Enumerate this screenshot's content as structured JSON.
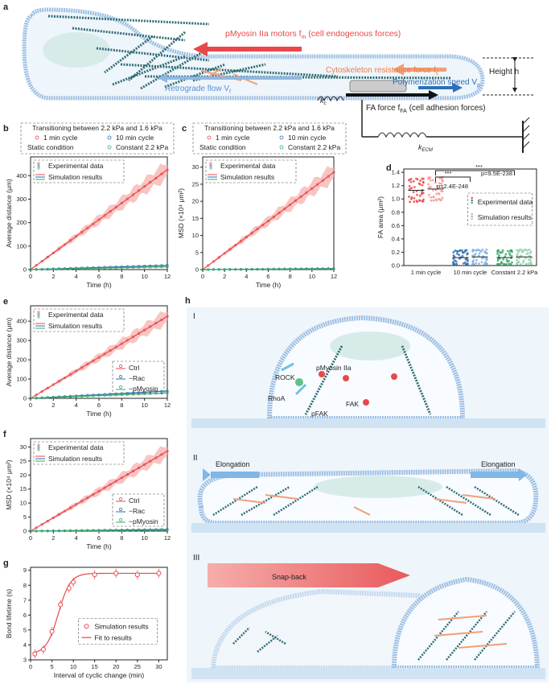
{
  "panel_letters": [
    "a",
    "b",
    "c",
    "d",
    "e",
    "f",
    "g",
    "h"
  ],
  "schematic_a": {
    "motor_label": "pMyosin IIa motors f",
    "motor_sub": "m",
    "motor_suffix": " (cell endogenous forces)",
    "resistance_label": "Cytoskeleton resistance force f",
    "resistance_sub": "c",
    "retro_label": "Retrograde flow V",
    "retro_sub": "f",
    "poly_label": "Polymerization speed V",
    "poly_sub": "p",
    "height_label": "Height h",
    "kc_label": "k",
    "kc_sub": "c",
    "fa_label": "FA force f",
    "fa_sub": "FA",
    "fa_suffix": " (cell adhesion forces)",
    "kecm_label": "k",
    "kecm_sub": "ECM"
  },
  "legend_bc": {
    "header": "Transitioning between 2.2 kPa and 1.6 kPa",
    "s1": "1 min cycle",
    "s2": "10 min cycle",
    "static_label": "Static condition",
    "s3": "Constant 2.2 kPa",
    "exp": "Experimental data",
    "sim": "Simulation results"
  },
  "legend_ef": {
    "exp": "Experimental data",
    "sim": "Simulation results",
    "c1": "Ctrl",
    "c2": "−Rac",
    "c3": "−pMyosin"
  },
  "legend_g": {
    "sim": "Simulation results",
    "fit": "Fit to results"
  },
  "legend_d": {
    "exp": "Experimental data",
    "sim": "Simulation results",
    "p1": "p=2.4E-248",
    "p2": "p=9.5E-238",
    "stars1": "***",
    "stars2": "***"
  },
  "colors": {
    "red": "#e8484a",
    "blue": "#2f6fb6",
    "green": "#3aa86a",
    "pink": "#f6b7b4",
    "cell": "#9dbfe3",
    "orange": "#f29f77"
  },
  "chart_data": [
    {
      "panel": "b",
      "type": "line",
      "xlabel": "Time (h)",
      "ylabel": "Average distance (μm)",
      "xlim": [
        0,
        12
      ],
      "ylim": [
        0,
        480
      ],
      "xticks": [
        0,
        2,
        4,
        6,
        8,
        10,
        12
      ],
      "yticks": [
        0,
        100,
        200,
        300,
        400
      ],
      "series": [
        {
          "name": "1 min cycle",
          "x": [
            0,
            12
          ],
          "y": [
            0,
            425
          ]
        },
        {
          "name": "10 min cycle",
          "x": [
            0,
            12
          ],
          "y": [
            0,
            18
          ]
        },
        {
          "name": "Constant 2.2 kPa",
          "x": [
            0,
            12
          ],
          "y": [
            0,
            12
          ]
        }
      ]
    },
    {
      "panel": "c",
      "type": "line",
      "xlabel": "Time (h)",
      "ylabel": "MSD (×10⁴ μm²)",
      "xlim": [
        0,
        12
      ],
      "ylim": [
        0,
        33
      ],
      "xticks": [
        0,
        2,
        4,
        6,
        8,
        10,
        12
      ],
      "yticks": [
        0,
        5,
        10,
        15,
        20,
        25,
        30
      ],
      "series": [
        {
          "name": "1 min cycle",
          "x": [
            0,
            12
          ],
          "y": [
            0,
            28.5
          ]
        },
        {
          "name": "10 min cycle",
          "x": [
            0,
            12
          ],
          "y": [
            0,
            0.3
          ]
        },
        {
          "name": "Constant 2.2 kPa",
          "x": [
            0,
            12
          ],
          "y": [
            0,
            0.2
          ]
        }
      ]
    },
    {
      "panel": "d",
      "type": "scatter",
      "ylabel": "FA area (μm²)",
      "ylim": [
        0,
        1.45
      ],
      "yticks": [
        0,
        0.2,
        0.4,
        0.6,
        0.8,
        1.0,
        1.2,
        1.4
      ],
      "categories": [
        "1 min cycle",
        "10 min cycle",
        "Constant 2.2 kPa"
      ],
      "groups": [
        {
          "category": "1 min cycle",
          "exp_mean": 1.13,
          "sim_mean": 1.15
        },
        {
          "category": "10 min cycle",
          "exp_mean": 0.12,
          "sim_mean": 0.13
        },
        {
          "category": "Constant 2.2 kPa",
          "exp_mean": 0.12,
          "sim_mean": 0.13
        }
      ]
    },
    {
      "panel": "e",
      "type": "line",
      "xlabel": "Time (h)",
      "ylabel": "Average distance (μm)",
      "xlim": [
        0,
        12
      ],
      "ylim": [
        0,
        480
      ],
      "xticks": [
        0,
        2,
        4,
        6,
        8,
        10,
        12
      ],
      "yticks": [
        0,
        100,
        200,
        300,
        400
      ],
      "series": [
        {
          "name": "Ctrl",
          "x": [
            0,
            12
          ],
          "y": [
            0,
            425
          ]
        },
        {
          "name": "−Rac",
          "x": [
            0,
            12
          ],
          "y": [
            0,
            38
          ]
        },
        {
          "name": "−pMyosin",
          "x": [
            0,
            12
          ],
          "y": [
            0,
            28
          ]
        }
      ]
    },
    {
      "panel": "f",
      "type": "line",
      "xlabel": "Time (h)",
      "ylabel": "MSD (×10⁴ μm²)",
      "xlim": [
        0,
        12
      ],
      "ylim": [
        0,
        33
      ],
      "xticks": [
        0,
        2,
        4,
        6,
        8,
        10,
        12
      ],
      "yticks": [
        0,
        5,
        10,
        15,
        20,
        25,
        30
      ],
      "series": [
        {
          "name": "Ctrl",
          "x": [
            0,
            12
          ],
          "y": [
            0,
            28.5
          ]
        },
        {
          "name": "−Rac",
          "x": [
            0,
            12
          ],
          "y": [
            0,
            0.6
          ]
        },
        {
          "name": "−pMyosin",
          "x": [
            0,
            12
          ],
          "y": [
            0,
            0.4
          ]
        }
      ]
    },
    {
      "panel": "g",
      "type": "scatter",
      "xlabel": "Interval of cyclic change (min)",
      "ylabel": "Bond lifetime (s)",
      "xlim": [
        0,
        32
      ],
      "ylim": [
        3,
        9.2
      ],
      "xticks": [
        0,
        5,
        10,
        15,
        20,
        25,
        30
      ],
      "yticks": [
        3,
        4,
        5,
        6,
        7,
        8,
        9
      ],
      "x": [
        1,
        3,
        5,
        7,
        9,
        10,
        15,
        20,
        25,
        30
      ],
      "y": [
        3.4,
        3.7,
        4.9,
        6.7,
        7.8,
        8.2,
        8.7,
        8.8,
        8.7,
        8.8
      ]
    }
  ],
  "schematic_h": {
    "p1": "I",
    "p2": "II",
    "p3": "III",
    "rock": "ROCK",
    "pmyo": "pMyosin IIa",
    "rhoa": "RhoA",
    "fak": "FAK",
    "pfak": "pFAK",
    "elong_l": "Elongation",
    "elong_r": "Elongation",
    "snap": "Snap-back"
  }
}
